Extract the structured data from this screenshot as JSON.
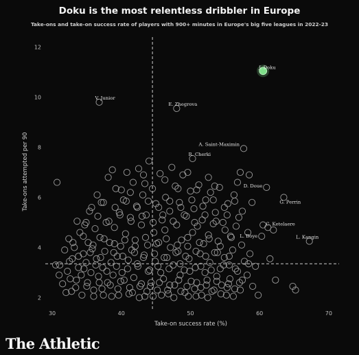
{
  "header": {
    "title": "Doku is the most relentless dribbler in Europe",
    "subtitle": "Take-ons and take-on success rate of players with 900+ minutes in Europe's big five leagues in 2022-23"
  },
  "footer": {
    "brand": "The Athletic"
  },
  "colors": {
    "background": "#0a0a0a",
    "point_stroke": "#9c9c9c",
    "highlight": "#7fe08a",
    "reference_line": "#cfcfcf"
  },
  "chart_data": {
    "type": "scatter",
    "xlabel": "Take-on success rate (%)",
    "ylabel": "Take-ons attempted per 90",
    "xlim": [
      29,
      71.5
    ],
    "ylim": [
      1.6,
      12.4
    ],
    "x_ticks": [
      30,
      40,
      50,
      60,
      70
    ],
    "y_ticks": [
      2,
      4,
      6,
      8,
      10,
      12
    ],
    "grid": false,
    "reference_lines": {
      "x": 44.5,
      "y": 3.35
    },
    "highlighted": [
      {
        "name": "J. Doku",
        "x": 60.5,
        "y": 11.05
      }
    ],
    "labeled_points": [
      {
        "name": "V. Junior",
        "x": 36.8,
        "y": 9.8
      },
      {
        "name": "E. Zhegrova",
        "x": 48.0,
        "y": 9.55
      },
      {
        "name": "R. Cherki",
        "x": 50.3,
        "y": 7.55
      },
      {
        "name": "A. Saint-Maximin",
        "x": 57.7,
        "y": 7.95
      },
      {
        "name": "D. Doue",
        "x": 61.0,
        "y": 6.4
      },
      {
        "name": "G. Perrin",
        "x": 63.5,
        "y": 6.0
      },
      {
        "name": "C. Ketelaere",
        "x": 61.2,
        "y": 4.8
      },
      {
        "name": "L. Boye",
        "x": 60.3,
        "y": 4.45
      },
      {
        "name": "L. Kangin",
        "x": 67.2,
        "y": 4.25
      }
    ],
    "points": [
      [
        30.7,
        6.6
      ],
      [
        31.1,
        3.3
      ],
      [
        31.5,
        2.55
      ],
      [
        31.8,
        3.9
      ],
      [
        32.0,
        2.2
      ],
      [
        32.2,
        3.05
      ],
      [
        32.4,
        4.35
      ],
      [
        32.6,
        2.75
      ],
      [
        32.9,
        3.55
      ],
      [
        33.2,
        4.0
      ],
      [
        33.4,
        2.4
      ],
      [
        33.6,
        5.05
      ],
      [
        33.8,
        3.2
      ],
      [
        34.0,
        4.6
      ],
      [
        34.2,
        2.9
      ],
      [
        34.3,
        2.1
      ],
      [
        34.5,
        3.75
      ],
      [
        34.7,
        4.9
      ],
      [
        34.9,
        3.4
      ],
      [
        35.1,
        2.6
      ],
      [
        35.2,
        4.2
      ],
      [
        35.4,
        5.45
      ],
      [
        35.6,
        3.0
      ],
      [
        35.8,
        3.95
      ],
      [
        36.0,
        2.3
      ],
      [
        36.2,
        4.75
      ],
      [
        36.4,
        3.55
      ],
      [
        36.5,
        6.1
      ],
      [
        36.7,
        2.85
      ],
      [
        36.9,
        4.4
      ],
      [
        37.1,
        5.8
      ],
      [
        37.3,
        3.2
      ],
      [
        37.4,
        2.1
      ],
      [
        37.6,
        3.85
      ],
      [
        37.8,
        5.0
      ],
      [
        38.0,
        2.6
      ],
      [
        38.1,
        6.8
      ],
      [
        38.3,
        4.2
      ],
      [
        38.5,
        3.4
      ],
      [
        38.7,
        7.1
      ],
      [
        38.8,
        2.9
      ],
      [
        39.0,
        4.8
      ],
      [
        39.2,
        6.35
      ],
      [
        39.4,
        3.65
      ],
      [
        39.5,
        2.35
      ],
      [
        39.7,
        5.4
      ],
      [
        39.9,
        4.05
      ],
      [
        40.1,
        3.0
      ],
      [
        40.3,
        5.9
      ],
      [
        40.4,
        2.7
      ],
      [
        40.6,
        4.55
      ],
      [
        40.8,
        7.0
      ],
      [
        41.0,
        3.5
      ],
      [
        41.1,
        2.15
      ],
      [
        41.3,
        5.2
      ],
      [
        41.5,
        3.9
      ],
      [
        41.7,
        6.6
      ],
      [
        41.8,
        2.8
      ],
      [
        42.0,
        4.3
      ],
      [
        42.2,
        5.65
      ],
      [
        42.4,
        3.25
      ],
      [
        42.5,
        7.15
      ],
      [
        42.7,
        2.45
      ],
      [
        42.9,
        4.9
      ],
      [
        43.1,
        6.1
      ],
      [
        43.3,
        3.7
      ],
      [
        43.4,
        2.05
      ],
      [
        43.6,
        5.3
      ],
      [
        43.8,
        4.1
      ],
      [
        44.0,
        7.45
      ],
      [
        44.1,
        3.1
      ],
      [
        44.3,
        2.6
      ],
      [
        44.5,
        6.35
      ],
      [
        44.7,
        4.6
      ],
      [
        44.9,
        3.45
      ],
      [
        45.0,
        5.75
      ],
      [
        45.2,
        2.3
      ],
      [
        45.4,
        4.2
      ],
      [
        45.6,
        6.95
      ],
      [
        45.7,
        3.0
      ],
      [
        45.9,
        5.1
      ],
      [
        46.1,
        2.75
      ],
      [
        46.3,
        4.7
      ],
      [
        46.4,
        6.0
      ],
      [
        46.6,
        3.6
      ],
      [
        46.8,
        2.15
      ],
      [
        47.0,
        5.45
      ],
      [
        47.1,
        4.0
      ],
      [
        47.3,
        7.2
      ],
      [
        47.5,
        3.3
      ],
      [
        47.7,
        2.5
      ],
      [
        47.8,
        6.45
      ],
      [
        48.0,
        4.9
      ],
      [
        48.2,
        3.85
      ],
      [
        48.4,
        5.8
      ],
      [
        48.5,
        2.9
      ],
      [
        48.7,
        4.3
      ],
      [
        48.9,
        6.9
      ],
      [
        49.1,
        3.1
      ],
      [
        49.2,
        2.2
      ],
      [
        49.4,
        5.25
      ],
      [
        49.6,
        4.05
      ],
      [
        49.8,
        3.55
      ],
      [
        50.0,
        6.25
      ],
      [
        50.1,
        2.65
      ],
      [
        50.3,
        4.6
      ],
      [
        50.5,
        5.55
      ],
      [
        50.7,
        3.2
      ],
      [
        50.8,
        2.05
      ],
      [
        51.0,
        4.85
      ],
      [
        51.2,
        6.5
      ],
      [
        51.4,
        3.75
      ],
      [
        51.5,
        2.4
      ],
      [
        51.7,
        5.1
      ],
      [
        51.9,
        4.15
      ],
      [
        52.1,
        3.0
      ],
      [
        52.2,
        5.9
      ],
      [
        52.4,
        2.7
      ],
      [
        52.6,
        4.5
      ],
      [
        52.8,
        3.4
      ],
      [
        52.9,
        6.2
      ],
      [
        53.1,
        2.25
      ],
      [
        53.3,
        4.95
      ],
      [
        53.5,
        3.8
      ],
      [
        53.6,
        5.4
      ],
      [
        53.8,
        2.85
      ],
      [
        54.0,
        4.25
      ],
      [
        54.2,
        6.4
      ],
      [
        54.3,
        3.15
      ],
      [
        54.5,
        2.5
      ],
      [
        54.7,
        5.0
      ],
      [
        54.9,
        3.6
      ],
      [
        55.0,
        4.7
      ],
      [
        55.2,
        2.1
      ],
      [
        55.4,
        5.75
      ],
      [
        55.6,
        3.3
      ],
      [
        55.7,
        2.75
      ],
      [
        55.9,
        4.4
      ],
      [
        56.1,
        3.9
      ],
      [
        56.3,
        6.1
      ],
      [
        56.4,
        2.35
      ],
      [
        56.6,
        4.85
      ],
      [
        56.8,
        3.05
      ],
      [
        57.0,
        5.2
      ],
      [
        57.1,
        2.6
      ],
      [
        57.4,
        4.1
      ],
      [
        57.8,
        3.45
      ],
      [
        58.2,
        2.9
      ],
      [
        58.6,
        3.75
      ],
      [
        59.0,
        2.45
      ],
      [
        59.4,
        3.25
      ],
      [
        59.8,
        2.1
      ],
      [
        61.5,
        3.55
      ],
      [
        62.3,
        2.7
      ],
      [
        64.8,
        2.45
      ],
      [
        65.2,
        2.3
      ],
      [
        36.0,
        2.05
      ],
      [
        37.2,
        2.35
      ],
      [
        38.6,
        2.05
      ],
      [
        39.6,
        2.1
      ],
      [
        41.6,
        2.2
      ],
      [
        42.6,
        2.0
      ],
      [
        43.7,
        2.25
      ],
      [
        44.6,
        2.05
      ],
      [
        45.8,
        2.1
      ],
      [
        46.7,
        2.3
      ],
      [
        47.6,
        2.0
      ],
      [
        48.6,
        2.25
      ],
      [
        49.7,
        2.05
      ],
      [
        50.6,
        2.35
      ],
      [
        51.6,
        2.1
      ],
      [
        52.5,
        2.0
      ],
      [
        53.4,
        2.3
      ],
      [
        54.4,
        2.15
      ],
      [
        55.3,
        2.4
      ],
      [
        56.2,
        2.05
      ],
      [
        57.2,
        2.3
      ],
      [
        33.5,
        2.7
      ],
      [
        35.0,
        2.45
      ],
      [
        36.8,
        2.6
      ],
      [
        38.4,
        2.5
      ],
      [
        39.9,
        2.65
      ],
      [
        41.2,
        2.4
      ],
      [
        42.9,
        2.55
      ],
      [
        44.2,
        2.45
      ],
      [
        45.5,
        2.6
      ],
      [
        47.0,
        2.5
      ],
      [
        48.3,
        2.7
      ],
      [
        49.5,
        2.45
      ],
      [
        50.9,
        2.6
      ],
      [
        52.3,
        2.5
      ],
      [
        53.8,
        2.65
      ],
      [
        55.5,
        2.55
      ],
      [
        57.5,
        2.7
      ],
      [
        32.5,
        3.45
      ],
      [
        34.6,
        3.15
      ],
      [
        36.3,
        3.3
      ],
      [
        37.9,
        3.05
      ],
      [
        39.3,
        3.25
      ],
      [
        40.9,
        3.15
      ],
      [
        42.3,
        3.35
      ],
      [
        43.9,
        3.05
      ],
      [
        45.3,
        3.25
      ],
      [
        46.9,
        3.15
      ],
      [
        48.5,
        3.35
      ],
      [
        49.9,
        3.05
      ],
      [
        51.5,
        3.25
      ],
      [
        53.0,
        3.1
      ],
      [
        54.8,
        3.3
      ],
      [
        56.5,
        3.15
      ],
      [
        58.4,
        3.35
      ],
      [
        33.0,
        4.2
      ],
      [
        34.5,
        4.45
      ],
      [
        35.9,
        4.1
      ],
      [
        37.5,
        4.35
      ],
      [
        39.0,
        4.15
      ],
      [
        40.5,
        4.3
      ],
      [
        42.0,
        4.05
      ],
      [
        43.5,
        4.4
      ],
      [
        45.1,
        4.15
      ],
      [
        46.5,
        4.35
      ],
      [
        48.1,
        4.1
      ],
      [
        49.6,
        4.4
      ],
      [
        51.3,
        4.2
      ],
      [
        52.7,
        4.35
      ],
      [
        54.3,
        4.05
      ],
      [
        55.8,
        4.45
      ],
      [
        33.8,
        3.65
      ],
      [
        35.5,
        3.8
      ],
      [
        37.0,
        3.6
      ],
      [
        38.9,
        3.8
      ],
      [
        40.2,
        3.65
      ],
      [
        41.9,
        3.8
      ],
      [
        43.2,
        3.6
      ],
      [
        44.8,
        3.75
      ],
      [
        46.2,
        3.6
      ],
      [
        47.9,
        3.8
      ],
      [
        49.3,
        3.65
      ],
      [
        50.8,
        3.85
      ],
      [
        52.2,
        3.65
      ],
      [
        53.9,
        3.8
      ],
      [
        55.6,
        3.65
      ],
      [
        34.9,
        5.0
      ],
      [
        36.6,
        5.25
      ],
      [
        38.2,
        5.05
      ],
      [
        39.8,
        5.3
      ],
      [
        41.4,
        5.05
      ],
      [
        43.0,
        5.25
      ],
      [
        44.6,
        5.0
      ],
      [
        46.0,
        5.3
      ],
      [
        47.5,
        5.05
      ],
      [
        49.1,
        5.3
      ],
      [
        50.6,
        5.0
      ],
      [
        52.1,
        5.3
      ],
      [
        53.7,
        5.05
      ],
      [
        55.3,
        5.3
      ],
      [
        57.5,
        5.45
      ],
      [
        58.3,
        4.6
      ],
      [
        35.7,
        5.6
      ],
      [
        37.4,
        5.8
      ],
      [
        39.1,
        5.6
      ],
      [
        40.7,
        5.85
      ],
      [
        42.3,
        5.6
      ],
      [
        43.9,
        5.85
      ],
      [
        45.4,
        5.6
      ],
      [
        47.0,
        5.85
      ],
      [
        48.6,
        5.6
      ],
      [
        50.2,
        5.9
      ],
      [
        51.8,
        5.65
      ],
      [
        53.3,
        5.9
      ],
      [
        54.9,
        5.6
      ],
      [
        56.4,
        5.85
      ],
      [
        58.9,
        5.8
      ],
      [
        40.0,
        6.3
      ],
      [
        41.3,
        6.2
      ],
      [
        43.4,
        6.55
      ],
      [
        46.3,
        6.7
      ],
      [
        48.2,
        6.35
      ],
      [
        50.9,
        6.3
      ],
      [
        53.5,
        6.45
      ],
      [
        56.8,
        6.6
      ],
      [
        58.5,
        6.9
      ],
      [
        43.2,
        6.9
      ],
      [
        49.6,
        7.0
      ],
      [
        52.6,
        6.8
      ],
      [
        57.2,
        7.0
      ],
      [
        30.5,
        3.3
      ],
      [
        31.0,
        2.9
      ],
      [
        32.8,
        2.25
      ],
      [
        60.5,
        4.9
      ],
      [
        62.0,
        4.7
      ]
    ]
  }
}
